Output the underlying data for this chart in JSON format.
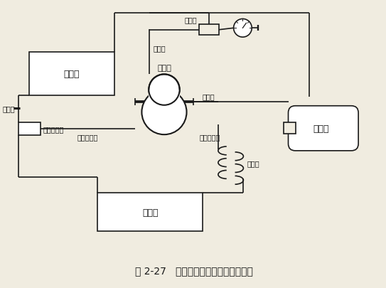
{
  "title": "图 2-27   单侧抽真空系统连接图（一）",
  "bg_color": "#f0ece0",
  "line_color": "#1a1a1a",
  "labels": {
    "evaporator": "蒸发器",
    "condenser": "冷凝器",
    "compressor": "压缩机",
    "dryer": "干燥过滤器",
    "vacuum_pump": "真空泵",
    "capillary": "毛细管",
    "charge_pipe": "充气管",
    "process_pipe": "工艺管",
    "low_press": "低压吸气管",
    "high_press": "高压排气管",
    "defrost_pipe": "除露管",
    "three_way": "三通阀"
  },
  "fontsize": 8,
  "title_fontsize": 10
}
